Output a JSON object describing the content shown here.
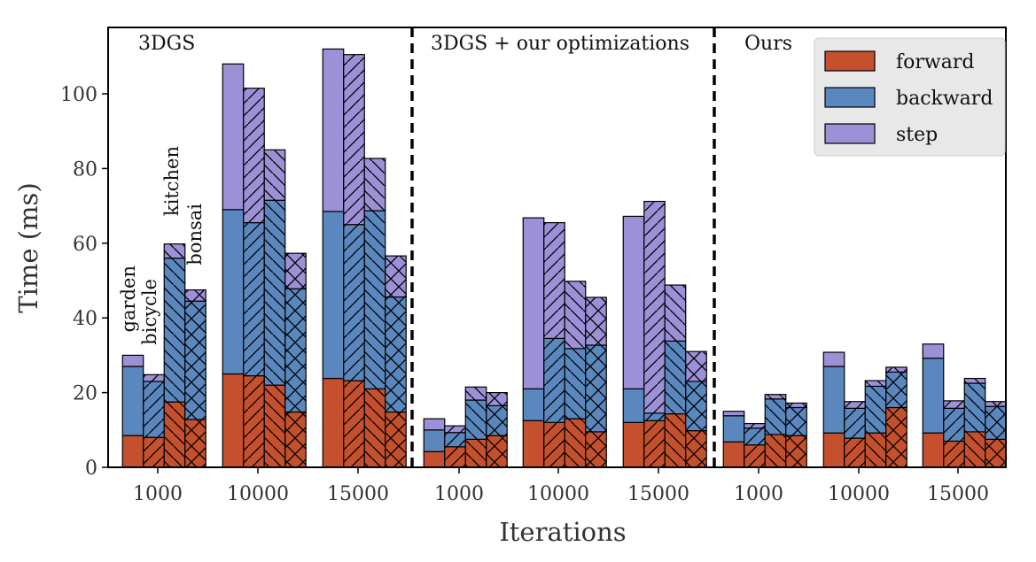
{
  "chart_data": {
    "type": "bar",
    "stacked": true,
    "xlabel": "Iterations",
    "ylabel": "Time (ms)",
    "ylim": [
      0,
      118
    ],
    "yticks": [
      0,
      20,
      40,
      60,
      80,
      100
    ],
    "legend": {
      "placement": "top-right",
      "entries": [
        "forward",
        "backward",
        "step"
      ]
    },
    "colors": {
      "forward": "#c4502e",
      "backward": "#5a87bd",
      "step": "#9c90d6",
      "separator": "#000000",
      "legend_bg": "#e8e8e8"
    },
    "scenes": [
      "garden",
      "bicycle",
      "kitchen",
      "bonsai"
    ],
    "scene_hatch": [
      "none",
      "/",
      "\\",
      "x"
    ],
    "panels": [
      {
        "title": "3DGS",
        "groups": [
          {
            "iterations": "1000",
            "forward": [
              8.5,
              8.0,
              17.5,
              12.8
            ],
            "backward": [
              18.5,
              15.0,
              38.5,
              31.7
            ],
            "step": [
              3.0,
              1.8,
              3.8,
              3.0
            ]
          },
          {
            "iterations": "10000",
            "forward": [
              25.0,
              24.5,
              22.0,
              14.8
            ],
            "backward": [
              44.0,
              41.0,
              49.5,
              33.0
            ],
            "step": [
              39.0,
              36.0,
              13.5,
              9.5
            ]
          },
          {
            "iterations": "15000",
            "forward": [
              23.8,
              23.2,
              21.0,
              14.8
            ],
            "backward": [
              44.7,
              41.8,
              47.7,
              30.8
            ],
            "step": [
              43.5,
              45.5,
              14.0,
              11.0
            ]
          }
        ]
      },
      {
        "title": "3DGS + our optimizations",
        "groups": [
          {
            "iterations": "1000",
            "forward": [
              4.2,
              5.5,
              7.5,
              8.5
            ],
            "backward": [
              5.8,
              3.8,
              10.5,
              8.0
            ],
            "step": [
              3.0,
              1.8,
              3.5,
              3.5
            ]
          },
          {
            "iterations": "10000",
            "forward": [
              12.5,
              12.0,
              13.0,
              9.5
            ],
            "backward": [
              8.5,
              22.5,
              18.8,
              23.2
            ],
            "step": [
              45.8,
              31.0,
              18.0,
              12.8
            ]
          },
          {
            "iterations": "15000",
            "forward": [
              12.0,
              12.5,
              14.3,
              9.8
            ],
            "backward": [
              9.0,
              2.0,
              19.5,
              13.2
            ],
            "step": [
              46.2,
              56.7,
              15.0,
              8.0
            ]
          }
        ]
      },
      {
        "title": "Ours",
        "groups": [
          {
            "iterations": "1000",
            "forward": [
              6.8,
              6.0,
              8.8,
              8.5
            ],
            "backward": [
              7.0,
              4.5,
              9.5,
              7.5
            ],
            "step": [
              1.2,
              1.2,
              1.2,
              1.2
            ]
          },
          {
            "iterations": "10000",
            "forward": [
              9.2,
              7.8,
              9.2,
              16.0
            ],
            "backward": [
              17.8,
              8.0,
              12.5,
              9.5
            ],
            "step": [
              3.8,
              1.8,
              1.5,
              1.3
            ]
          },
          {
            "iterations": "15000",
            "forward": [
              9.2,
              7.0,
              9.5,
              7.5
            ],
            "backward": [
              20.0,
              8.8,
              13.0,
              8.8
            ],
            "step": [
              3.8,
              2.0,
              1.3,
              1.3
            ]
          }
        ]
      }
    ]
  }
}
